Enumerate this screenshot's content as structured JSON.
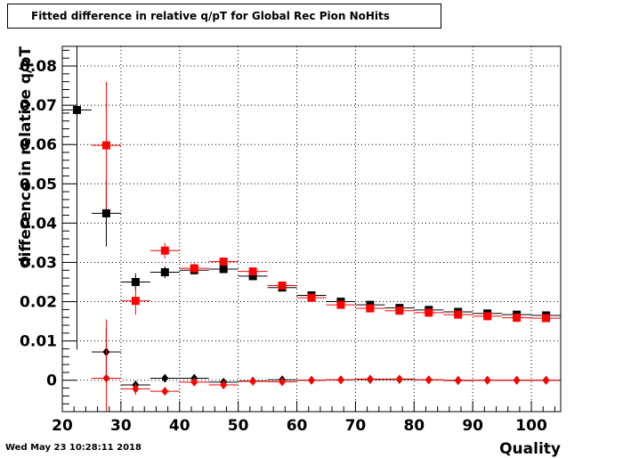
{
  "title": "Fitted difference in relative q/pT for Global Rec Pion NoHits",
  "timestamp": "Wed May 23 10:28:11 2018",
  "chart_data": {
    "type": "scatter",
    "title": "Fitted difference in relative q/pT for Global Rec Pion NoHits",
    "xlabel": "Quality",
    "ylabel": "difference in relative q/pT",
    "xlim": [
      20,
      105
    ],
    "ylim": [
      -0.008,
      0.085
    ],
    "grid": true,
    "x_ticks": [
      20,
      30,
      40,
      50,
      60,
      70,
      80,
      90,
      100
    ],
    "x_tick_labels": [
      "20",
      "30",
      "40",
      "50",
      "60",
      "70",
      "80",
      "90",
      "100"
    ],
    "y_ticks": [
      0,
      0.01,
      0.02,
      0.03,
      0.04,
      0.05,
      0.06,
      0.07,
      0.08
    ],
    "y_tick_labels": [
      "0",
      "0.01",
      "0.02",
      "0.03",
      "0.04",
      "0.05",
      "0.06",
      "0.07",
      "0.08"
    ],
    "bin_halfwidth": 2.5,
    "series": [
      {
        "marker": "square",
        "color": "#000000",
        "points": [
          {
            "x": 22.5,
            "y": 0.0688,
            "err": 0.061
          },
          {
            "x": 27.5,
            "y": 0.0425,
            "err": 0.0085
          },
          {
            "x": 32.5,
            "y": 0.025,
            "err": 0.0022
          },
          {
            "x": 37.5,
            "y": 0.0275,
            "err": 0.0015
          },
          {
            "x": 42.5,
            "y": 0.028,
            "err": 0.001
          },
          {
            "x": 47.5,
            "y": 0.0283,
            "err": 0.0008
          },
          {
            "x": 52.5,
            "y": 0.0265,
            "err": 0.0006
          },
          {
            "x": 57.5,
            "y": 0.0236,
            "err": 0.0005
          },
          {
            "x": 62.5,
            "y": 0.0216,
            "err": 0.0004
          },
          {
            "x": 67.5,
            "y": 0.02,
            "err": 0.0003
          },
          {
            "x": 72.5,
            "y": 0.0192,
            "err": 0.0003
          },
          {
            "x": 77.5,
            "y": 0.0184,
            "err": 0.0003
          },
          {
            "x": 82.5,
            "y": 0.0179,
            "err": 0.0002
          },
          {
            "x": 87.5,
            "y": 0.0174,
            "err": 0.0002
          },
          {
            "x": 92.5,
            "y": 0.017,
            "err": 0.0002
          },
          {
            "x": 97.5,
            "y": 0.0167,
            "err": 0.0002
          },
          {
            "x": 102.5,
            "y": 0.0165,
            "err": 0.0002
          }
        ]
      },
      {
        "marker": "square",
        "color": "#ff0000",
        "points": [
          {
            "x": 27.5,
            "y": 0.0598,
            "err": 0.0162
          },
          {
            "x": 32.5,
            "y": 0.0202,
            "err": 0.0035
          },
          {
            "x": 37.5,
            "y": 0.033,
            "err": 0.002
          },
          {
            "x": 42.5,
            "y": 0.0285,
            "err": 0.0012
          },
          {
            "x": 47.5,
            "y": 0.0302,
            "err": 0.0009
          },
          {
            "x": 52.5,
            "y": 0.0277,
            "err": 0.0007
          },
          {
            "x": 57.5,
            "y": 0.0241,
            "err": 0.0005
          },
          {
            "x": 62.5,
            "y": 0.021,
            "err": 0.0004
          },
          {
            "x": 67.5,
            "y": 0.0192,
            "err": 0.0003
          },
          {
            "x": 72.5,
            "y": 0.0183,
            "err": 0.0003
          },
          {
            "x": 77.5,
            "y": 0.0177,
            "err": 0.0003
          },
          {
            "x": 82.5,
            "y": 0.0172,
            "err": 0.0002
          },
          {
            "x": 87.5,
            "y": 0.0167,
            "err": 0.0002
          },
          {
            "x": 92.5,
            "y": 0.0163,
            "err": 0.0002
          },
          {
            "x": 97.5,
            "y": 0.0159,
            "err": 0.0002
          },
          {
            "x": 102.5,
            "y": 0.0158,
            "err": 0.0002
          }
        ]
      },
      {
        "marker": "diamond",
        "color": "#000000",
        "points": [
          {
            "x": 27.5,
            "y": 0.0072,
            "err": 0.006
          },
          {
            "x": 32.5,
            "y": -0.0012,
            "err": 0.001
          },
          {
            "x": 37.5,
            "y": 0.0005,
            "err": 0.0008
          },
          {
            "x": 42.5,
            "y": 0.0005,
            "err": 0.0006
          },
          {
            "x": 47.5,
            "y": -0.0005,
            "err": 0.0005
          },
          {
            "x": 52.5,
            "y": -0.0002,
            "err": 0.0004
          },
          {
            "x": 57.5,
            "y": 0.0001,
            "err": 0.0003
          },
          {
            "x": 62.5,
            "y": 0.0,
            "err": 0.0003
          },
          {
            "x": 67.5,
            "y": 0.0001,
            "err": 0.0002
          },
          {
            "x": 72.5,
            "y": 0.0002,
            "err": 0.0002
          },
          {
            "x": 77.5,
            "y": 0.0002,
            "err": 0.0002
          },
          {
            "x": 82.5,
            "y": 0.0001,
            "err": 0.0002
          },
          {
            "x": 87.5,
            "y": -0.0001,
            "err": 0.0002
          },
          {
            "x": 92.5,
            "y": 0.0,
            "err": 0.0002
          },
          {
            "x": 97.5,
            "y": 0.0,
            "err": 0.0002
          },
          {
            "x": 102.5,
            "y": 0.0,
            "err": 0.0002
          }
        ]
      },
      {
        "marker": "diamond",
        "color": "#ff0000",
        "points": [
          {
            "x": 27.5,
            "y": 0.0005,
            "err": 0.015
          },
          {
            "x": 32.5,
            "y": -0.0022,
            "err": 0.0015
          },
          {
            "x": 37.5,
            "y": -0.0028,
            "err": 0.001
          },
          {
            "x": 42.5,
            "y": -0.0005,
            "err": 0.0007
          },
          {
            "x": 47.5,
            "y": -0.0012,
            "err": 0.0006
          },
          {
            "x": 52.5,
            "y": -0.0003,
            "err": 0.0004
          },
          {
            "x": 57.5,
            "y": -0.0004,
            "err": 0.0003
          },
          {
            "x": 62.5,
            "y": 0.0,
            "err": 0.0003
          },
          {
            "x": 67.5,
            "y": 0.0001,
            "err": 0.0002
          },
          {
            "x": 72.5,
            "y": 0.0003,
            "err": 0.0002
          },
          {
            "x": 77.5,
            "y": 0.0003,
            "err": 0.0002
          },
          {
            "x": 82.5,
            "y": 0.0001,
            "err": 0.0002
          },
          {
            "x": 87.5,
            "y": 0.0,
            "err": 0.0002
          },
          {
            "x": 92.5,
            "y": 0.0,
            "err": 0.0002
          },
          {
            "x": 97.5,
            "y": 0.0,
            "err": 0.0002
          },
          {
            "x": 102.5,
            "y": 0.0,
            "err": 0.0002
          }
        ]
      }
    ]
  }
}
